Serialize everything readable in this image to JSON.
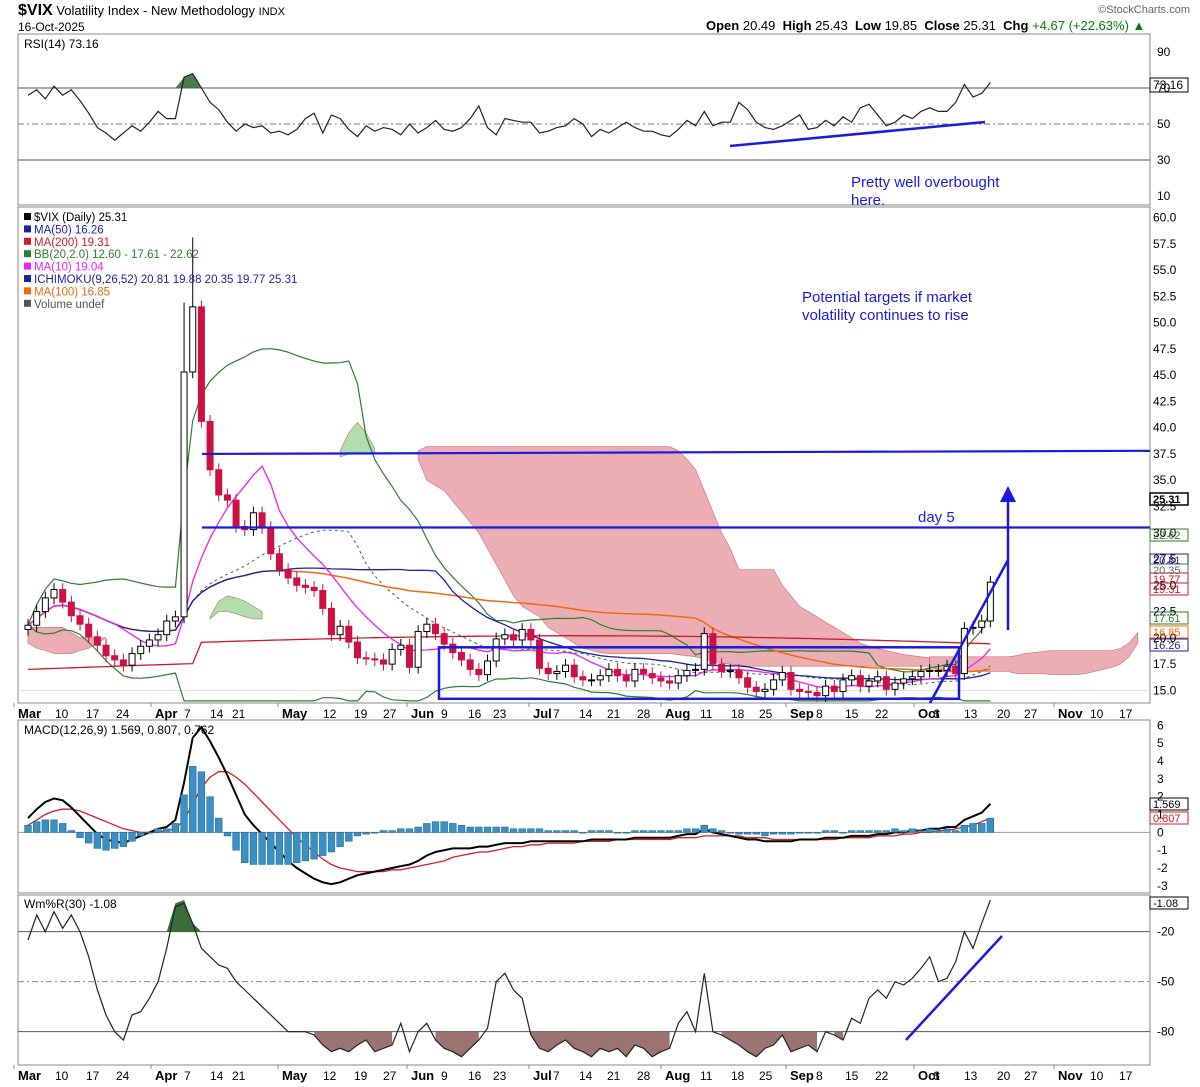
{
  "header": {
    "symbol": "$VIX",
    "name": "Volatility Index - New Methodology",
    "exchange": "INDX",
    "date": "16-Oct-2025",
    "open_label": "Open",
    "open": "20.49",
    "high_label": "High",
    "high": "25.43",
    "low_label": "Low",
    "low": "19.85",
    "close_label": "Close",
    "close": "25.31",
    "chg_label": "Chg",
    "chg": "+4.67 (+22.63%)",
    "brand": "©StockCharts.com"
  },
  "colors": {
    "up_candle": "#000000",
    "down_candle": "#cc1144",
    "ma50": "#1f1fa0",
    "ma200": "#cc1a2a",
    "bb": "#2e7d2e",
    "ma10": "#ee22ee",
    "ma100": "#ee6a10",
    "cloud_red": "#e8a0a8",
    "cloud_green": "#a8d8a0",
    "annotation": "#1a1adf",
    "macd_hist": "#3a8fc4"
  },
  "chart_data": [
    {
      "type": "line",
      "panel": "rsi",
      "legend": "RSI(14) 73.16",
      "y_ticks": [
        10,
        30,
        50,
        70,
        90
      ],
      "ylim": [
        5,
        100
      ],
      "current_value_label": "73.16",
      "series": [
        {
          "name": "RSI(14)",
          "values": [
            66,
            69,
            64,
            71,
            66,
            69,
            63,
            56,
            48,
            45,
            41,
            45,
            49,
            46,
            51,
            57,
            53,
            53,
            76,
            78,
            70,
            62,
            58,
            51,
            46,
            50,
            48,
            49,
            45,
            46,
            44,
            47,
            53,
            56,
            45,
            55,
            53,
            47,
            43,
            49,
            46,
            48,
            47,
            44,
            50,
            45,
            48,
            52,
            47,
            46,
            48,
            53,
            60,
            48,
            44,
            53,
            52,
            51,
            51,
            45,
            46,
            48,
            49,
            53,
            50,
            43,
            47,
            45,
            48,
            51,
            48,
            46,
            46,
            44,
            43,
            47,
            52,
            49,
            57,
            49,
            51,
            51,
            62,
            58,
            51,
            48,
            47,
            49,
            52,
            55,
            47,
            48,
            52,
            49,
            54,
            51,
            59,
            61,
            55,
            49,
            51,
            55,
            53,
            57,
            59,
            57,
            57,
            62,
            72,
            65,
            67,
            73
          ]
        }
      ],
      "annotations": [
        "Pretty well overbought here."
      ]
    },
    {
      "type": "candlestick",
      "panel": "price",
      "legend": [
        "$VIX (Daily) 25.31",
        "MA(50) 16.26",
        "MA(200) 19.31",
        "BB(20,2.0) 12.60 - 17.61 - 22.62",
        "MA(10) 19.04",
        "ICHIMOKU(9,26,52) 20.81 19.88 20.35 19.77 25.31",
        "MA(100) 16.85",
        "Volume undef"
      ],
      "y_ticks": [
        15.0,
        17.5,
        20.0,
        22.5,
        25.0,
        27.5,
        30.0,
        32.5,
        35.0,
        37.5,
        40.0,
        42.5,
        45.0,
        47.5,
        50.0,
        52.5,
        55.0,
        57.5,
        60.0
      ],
      "y_tick_labels": [
        "15.0",
        "17.5",
        "20.0",
        "22.5",
        "25.0",
        "27.5",
        "30.0",
        "32.5",
        "35.0",
        "37.5",
        "40.0",
        "42.5",
        "45.0",
        "47.5",
        "50.0",
        "52.5",
        "55.0",
        "57.5",
        "60.0"
      ],
      "ylim": [
        13.8,
        61.0
      ],
      "x_tick_labels": [
        "Mar",
        "10",
        "17",
        "24",
        "Apr",
        "7",
        "14",
        "21",
        "May",
        "12",
        "19",
        "27",
        "Jun",
        "9",
        "16",
        "23",
        "Jul",
        "7",
        "14",
        "21",
        "28",
        "Aug",
        "11",
        "18",
        "25",
        "Sep",
        "8",
        "15",
        "22",
        "Oct",
        "6",
        "13",
        "20",
        "27",
        "Nov",
        "10",
        "17"
      ],
      "close": [
        21.2,
        22.5,
        23.8,
        24.6,
        23.4,
        22.1,
        21.3,
        20.1,
        19.3,
        18.3,
        17.9,
        17.4,
        18.5,
        19.2,
        19.8,
        20.3,
        21.6,
        22.0,
        45.3,
        51.5,
        40.6,
        36.0,
        33.6,
        33.1,
        30.6,
        30.3,
        31.9,
        30.5,
        28.0,
        26.5,
        25.7,
        25.0,
        24.8,
        24.5,
        22.8,
        20.3,
        21.1,
        19.6,
        18.1,
        18.0,
        17.9,
        17.5,
        18.9,
        19.3,
        17.2,
        20.6,
        21.3,
        20.4,
        19.4,
        18.6,
        17.9,
        17.0,
        16.5,
        17.8,
        19.9,
        20.3,
        19.8,
        20.8,
        19.8,
        17.1,
        16.6,
        16.8,
        17.4,
        16.3,
        16.0,
        16.0,
        16.4,
        17.0,
        16.4,
        15.9,
        17.0,
        16.6,
        16.2,
        15.9,
        15.7,
        16.4,
        16.9,
        17.0,
        20.4,
        17.5,
        16.8,
        16.9,
        16.2,
        15.3,
        14.9,
        15.1,
        16.0,
        16.7,
        15.1,
        14.9,
        14.8,
        14.5,
        15.4,
        14.9,
        16.0,
        16.4,
        15.4,
        15.9,
        16.3,
        15.1,
        15.7,
        16.1,
        16.3,
        16.8,
        16.9,
        16.9,
        17.3,
        16.6,
        20.9,
        21.0,
        21.6,
        25.3
      ],
      "series": [
        {
          "name": "Fitted resistance / target line 1",
          "values": [
            37.5,
            37.8
          ]
        },
        {
          "name": "Fitted resistance / target line 2",
          "values": [
            30.5,
            30.5
          ]
        }
      ],
      "boxes": [
        {
          "x_start": "Jun 2",
          "x_end": "Oct 10",
          "y_low": 14.2,
          "y_high": 19.1
        }
      ],
      "current_value_labels": [
        "25.31",
        "22.62",
        "20.81",
        "20.35",
        "19.77",
        "19.31",
        "17.61",
        "16.85",
        "16.26"
      ],
      "annotations": [
        "Potential targets if market volatility continues to rise",
        "day 5"
      ]
    },
    {
      "type": "line",
      "panel": "macd",
      "legend": "MACD(12,26,9) 1.569, 0.807, 0.762",
      "y_ticks": [
        -3,
        -2,
        -1,
        0,
        1,
        2,
        3,
        4,
        5,
        6
      ],
      "ylim": [
        -3.4,
        6.3
      ],
      "current_value_labels": [
        "1.569",
        "0.807"
      ],
      "series": [
        {
          "name": "MACD",
          "values": [
            0.8,
            1.3,
            1.7,
            1.9,
            1.8,
            1.4,
            0.9,
            0.4,
            -0.1,
            -0.4,
            -0.5,
            -0.6,
            -0.4,
            -0.2,
            0.0,
            0.2,
            0.3,
            0.7,
            2.8,
            5.3,
            5.9,
            5.1,
            4.2,
            3.2,
            2.1,
            1.0,
            0.4,
            -0.1,
            -0.6,
            -1.1,
            -1.6,
            -2.0,
            -2.3,
            -2.6,
            -2.8,
            -2.9,
            -2.8,
            -2.6,
            -2.4,
            -2.3,
            -2.2,
            -2.1,
            -2.0,
            -1.9,
            -1.8,
            -1.6,
            -1.3,
            -1.1,
            -1.0,
            -0.9,
            -0.9,
            -0.9,
            -0.8,
            -0.8,
            -0.7,
            -0.6,
            -0.6,
            -0.6,
            -0.5,
            -0.5,
            -0.5,
            -0.5,
            -0.5,
            -0.5,
            -0.5,
            -0.4,
            -0.4,
            -0.4,
            -0.4,
            -0.4,
            -0.3,
            -0.3,
            -0.3,
            -0.3,
            -0.3,
            -0.2,
            -0.1,
            -0.1,
            0.2,
            0.0,
            -0.1,
            -0.2,
            -0.3,
            -0.4,
            -0.4,
            -0.5,
            -0.5,
            -0.5,
            -0.5,
            -0.4,
            -0.4,
            -0.4,
            -0.3,
            -0.3,
            -0.3,
            -0.2,
            -0.2,
            -0.2,
            -0.1,
            -0.1,
            0.0,
            0.0,
            0.1,
            0.1,
            0.2,
            0.2,
            0.3,
            0.3,
            0.7,
            0.9,
            1.1,
            1.6
          ]
        },
        {
          "name": "Signal",
          "values": [
            0.4,
            0.7,
            1.0,
            1.2,
            1.3,
            1.3,
            1.2,
            1.0,
            0.8,
            0.6,
            0.4,
            0.2,
            0.1,
            0.0,
            0.0,
            0.0,
            0.1,
            0.2,
            0.7,
            1.6,
            2.5,
            3.1,
            3.4,
            3.4,
            3.1,
            2.7,
            2.2,
            1.7,
            1.2,
            0.7,
            0.2,
            -0.3,
            -0.7,
            -1.1,
            -1.5,
            -1.8,
            -2.0,
            -2.1,
            -2.2,
            -2.2,
            -2.2,
            -2.2,
            -2.1,
            -2.1,
            -2.0,
            -1.9,
            -1.8,
            -1.7,
            -1.6,
            -1.4,
            -1.3,
            -1.2,
            -1.1,
            -1.1,
            -1.0,
            -0.9,
            -0.8,
            -0.8,
            -0.7,
            -0.7,
            -0.6,
            -0.6,
            -0.6,
            -0.6,
            -0.5,
            -0.5,
            -0.5,
            -0.5,
            -0.4,
            -0.4,
            -0.4,
            -0.4,
            -0.4,
            -0.4,
            -0.4,
            -0.3,
            -0.3,
            -0.3,
            -0.2,
            -0.2,
            -0.2,
            -0.2,
            -0.2,
            -0.3,
            -0.3,
            -0.3,
            -0.4,
            -0.4,
            -0.4,
            -0.4,
            -0.4,
            -0.4,
            -0.4,
            -0.4,
            -0.3,
            -0.3,
            -0.3,
            -0.3,
            -0.2,
            -0.2,
            -0.2,
            -0.1,
            -0.1,
            0.0,
            0.0,
            0.1,
            0.1,
            0.2,
            0.3,
            0.4,
            0.6,
            0.8
          ]
        }
      ]
    },
    {
      "type": "line",
      "panel": "williams",
      "legend": "Wm%R(30) -1.08",
      "y_ticks": [
        -80,
        -50,
        -20
      ],
      "ylim": [
        -100,
        2
      ],
      "current_value_label": "-1.08",
      "series": [
        {
          "name": "Wm%R(30)",
          "values": [
            -25,
            -10,
            -20,
            -8,
            -18,
            -10,
            -20,
            -35,
            -55,
            -70,
            -80,
            -85,
            -70,
            -68,
            -60,
            -50,
            -30,
            -5,
            -3,
            -15,
            -30,
            -35,
            -40,
            -42,
            -50,
            -55,
            -60,
            -65,
            -70,
            -75,
            -80,
            -80,
            -80,
            -82,
            -88,
            -92,
            -90,
            -92,
            -88,
            -85,
            -92,
            -90,
            -88,
            -75,
            -92,
            -80,
            -75,
            -85,
            -90,
            -92,
            -95,
            -90,
            -85,
            -78,
            -50,
            -45,
            -55,
            -60,
            -82,
            -90,
            -92,
            -88,
            -85,
            -90,
            -92,
            -95,
            -90,
            -92,
            -90,
            -95,
            -88,
            -90,
            -95,
            -92,
            -90,
            -75,
            -68,
            -80,
            -45,
            -80,
            -82,
            -85,
            -88,
            -92,
            -95,
            -90,
            -88,
            -82,
            -92,
            -90,
            -88,
            -92,
            -80,
            -82,
            -85,
            -72,
            -75,
            -60,
            -55,
            -60,
            -50,
            -52,
            -48,
            -42,
            -35,
            -50,
            -48,
            -38,
            -20,
            -30,
            -15,
            -1
          ]
        }
      ]
    }
  ]
}
